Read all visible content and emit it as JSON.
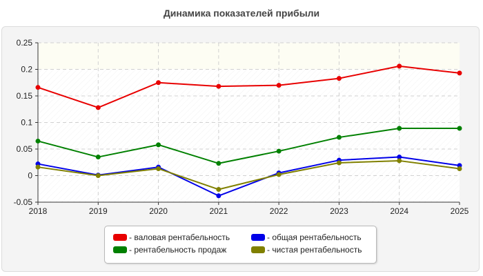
{
  "chart_data": {
    "type": "line",
    "title": "Динамика показателей прибыли",
    "x": [
      "2018",
      "2019",
      "2020",
      "2021",
      "2022",
      "2023",
      "2024",
      "2025"
    ],
    "ylim": [
      -0.05,
      0.25
    ],
    "yticks": [
      -0.05,
      0,
      0.05,
      0.1,
      0.15,
      0.2,
      0.25
    ],
    "ytick_labels": [
      "-0.05",
      "0",
      "0.05",
      "0.1",
      "0.15",
      "0.2",
      "0.25"
    ],
    "grid": true,
    "legend_position": "bottom",
    "series": [
      {
        "name": "- валовая рентабельность",
        "color": "#e80000",
        "values": [
          0.166,
          0.128,
          0.175,
          0.168,
          0.17,
          0.183,
          0.206,
          0.193
        ]
      },
      {
        "name": "- общая рентабельность",
        "color": "#0000e8",
        "values": [
          0.022,
          0.001,
          0.016,
          -0.038,
          0.005,
          0.029,
          0.035,
          0.019
        ]
      },
      {
        "name": "- рентабельность продаж",
        "color": "#008000",
        "values": [
          0.065,
          0.035,
          0.058,
          0.023,
          0.046,
          0.072,
          0.089,
          0.089
        ]
      },
      {
        "name": "- чистая рентабельность",
        "color": "#808000",
        "values": [
          0.016,
          0.0,
          0.013,
          -0.026,
          0.002,
          0.024,
          0.028,
          0.013
        ]
      }
    ]
  }
}
